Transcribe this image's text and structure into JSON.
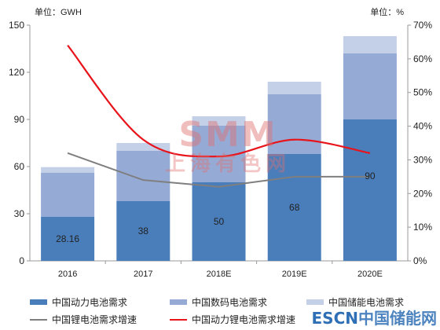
{
  "chart_data": {
    "type": "bar",
    "stacked": true,
    "left_unit_label": "单位：GWH",
    "right_unit_label": "单位：%",
    "categories": [
      "2016",
      "2017",
      "2018E",
      "2019E",
      "2020E"
    ],
    "left_ticks": [
      "0",
      "30",
      "60",
      "90",
      "120",
      "150"
    ],
    "right_ticks": [
      "0%",
      "10%",
      "20%",
      "30%",
      "40%",
      "50%",
      "60%",
      "70%"
    ],
    "ylim_left": [
      0,
      150
    ],
    "ylim_right": [
      0,
      70
    ],
    "bar_series": [
      {
        "name": "中国动力电池需求",
        "values": [
          28.16,
          38,
          50,
          68,
          90
        ],
        "labels": [
          "28.16",
          "38",
          "50",
          "68",
          "90"
        ],
        "color": "#4a7ebb"
      },
      {
        "name": "中国数码电池需求",
        "values": [
          28,
          32,
          36,
          38,
          42
        ],
        "color": "#95abd6"
      },
      {
        "name": "中国储能电池需求",
        "values": [
          3.5,
          5,
          6,
          8,
          11
        ],
        "color": "#c4d0e8"
      }
    ],
    "line_series": [
      {
        "name": "中国锂电池需求增速",
        "values": [
          32,
          24,
          22,
          25,
          25
        ],
        "color": "#7f7f7f"
      },
      {
        "name": "中国动力锂电池需求增速",
        "values": [
          64,
          36,
          31,
          36,
          32
        ],
        "color": "#e8141b"
      }
    ],
    "grid": false,
    "legend_position": "bottom"
  },
  "watermark": {
    "logo": "SMM",
    "text": "上海有色网"
  },
  "brand": {
    "en": "ESCN",
    "cn": "中国储能网"
  }
}
